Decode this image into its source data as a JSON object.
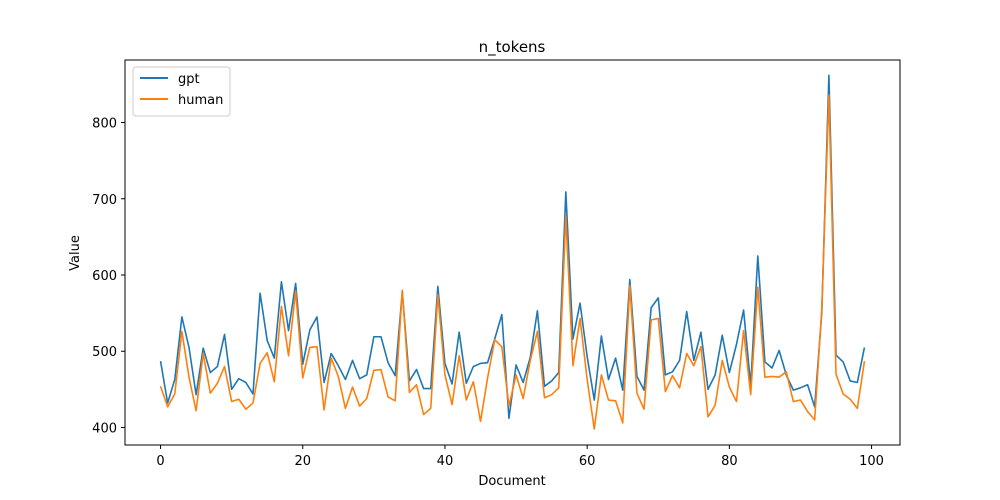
{
  "chart_data": {
    "type": "line",
    "title": "n_tokens",
    "xlabel": "Document",
    "ylabel": "Value",
    "xlim": [
      -5,
      104
    ],
    "ylim": [
      377,
      882
    ],
    "xticks": [
      0,
      20,
      40,
      60,
      80,
      100
    ],
    "yticks": [
      400,
      500,
      600,
      700,
      800
    ],
    "legend_position": "upper-left",
    "grid": false,
    "x": [
      0,
      1,
      2,
      3,
      4,
      5,
      6,
      7,
      8,
      9,
      10,
      11,
      12,
      13,
      14,
      15,
      16,
      17,
      18,
      19,
      20,
      21,
      22,
      23,
      24,
      25,
      26,
      27,
      28,
      29,
      30,
      31,
      32,
      33,
      34,
      35,
      36,
      37,
      38,
      39,
      40,
      41,
      42,
      43,
      44,
      45,
      46,
      47,
      48,
      49,
      50,
      51,
      52,
      53,
      54,
      55,
      56,
      57,
      58,
      59,
      60,
      61,
      62,
      63,
      64,
      65,
      66,
      67,
      68,
      69,
      70,
      71,
      72,
      73,
      74,
      75,
      76,
      77,
      78,
      79,
      80,
      81,
      82,
      83,
      84,
      85,
      86,
      87,
      88,
      89,
      90,
      91,
      92,
      93,
      94,
      95,
      96,
      97,
      98,
      99
    ],
    "series": [
      {
        "name": "gpt",
        "color": "#1f77b4",
        "values": [
          487,
          432,
          463,
          545,
          505,
          443,
          504,
          472,
          480,
          522,
          450,
          464,
          459,
          444,
          576,
          514,
          491,
          591,
          527,
          589,
          483,
          528,
          545,
          459,
          497,
          481,
          463,
          488,
          464,
          469,
          519,
          519,
          485,
          468,
          578,
          461,
          476,
          451,
          451,
          585,
          484,
          457,
          525,
          458,
          480,
          484,
          485,
          516,
          548,
          412,
          482,
          459,
          492,
          553,
          454,
          461,
          472,
          709,
          516,
          563,
          493,
          436,
          520,
          463,
          491,
          449,
          594,
          467,
          449,
          557,
          570,
          469,
          473,
          488,
          552,
          488,
          525,
          450,
          469,
          521,
          472,
          509,
          554,
          455,
          625,
          486,
          478,
          501,
          469,
          449,
          452,
          456,
          427,
          550,
          862,
          495,
          486,
          461,
          459,
          505
        ]
      },
      {
        "name": "human",
        "color": "#ff7f0e",
        "values": [
          454,
          427,
          444,
          526,
          466,
          422,
          497,
          445,
          458,
          480,
          434,
          437,
          424,
          432,
          484,
          498,
          460,
          559,
          494,
          579,
          465,
          505,
          506,
          423,
          491,
          467,
          425,
          453,
          428,
          438,
          475,
          476,
          440,
          435,
          580,
          446,
          456,
          417,
          425,
          574,
          469,
          430,
          494,
          436,
          460,
          408,
          465,
          515,
          506,
          428,
          469,
          438,
          488,
          526,
          439,
          443,
          452,
          677,
          481,
          543,
          463,
          398,
          469,
          436,
          435,
          406,
          586,
          445,
          424,
          541,
          543,
          447,
          468,
          452,
          497,
          481,
          506,
          414,
          429,
          488,
          453,
          434,
          527,
          443,
          584,
          466,
          467,
          466,
          473,
          434,
          436,
          421,
          410,
          556,
          836,
          470,
          444,
          437,
          425,
          487
        ]
      }
    ]
  }
}
